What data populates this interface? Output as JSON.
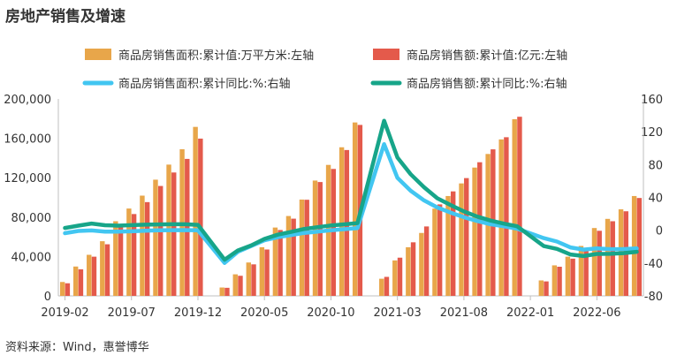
{
  "chart_data": {
    "type": "bar",
    "title": "房地产销售及增速",
    "source": "资料来源：Wind，惠誉博华",
    "legend": [
      {
        "name": "商品房销售面积:累计值:万平方米:左轴",
        "color": "#E8A64A",
        "kind": "bar"
      },
      {
        "name": "商品房销售额:累计值:亿元:左轴",
        "color": "#E45A4B",
        "kind": "bar"
      },
      {
        "name": "商品房销售面积:累计同比:%:右轴",
        "color": "#42C6F1",
        "kind": "line"
      },
      {
        "name": "商品房销售额:累计同比:%:右轴",
        "color": "#17A589",
        "kind": "line"
      }
    ],
    "x_ticks": [
      "2019-02",
      "2019-07",
      "2019-12",
      "2020-05",
      "2020-10",
      "2021-03",
      "2021-08",
      "2022-01",
      "2022-06"
    ],
    "x_tick_months": [
      0,
      5,
      10,
      15,
      20,
      25,
      30,
      35,
      40
    ],
    "y_left": {
      "min": 0,
      "max": 200000,
      "ticks": [
        0,
        40000,
        80000,
        120000,
        160000,
        200000
      ],
      "tick_labels": [
        "0",
        "40,000",
        "80,000",
        "120,000",
        "160,000",
        "200,000"
      ]
    },
    "y_right": {
      "min": -80,
      "max": 160,
      "ticks": [
        -80,
        -40,
        0,
        40,
        80,
        120,
        160
      ],
      "tick_labels": [
        "-80",
        "-40",
        "0",
        "40",
        "80",
        "120",
        "160"
      ]
    },
    "months": [
      "2019-02",
      "2019-03",
      "2019-04",
      "2019-05",
      "2019-06",
      "2019-07",
      "2019-08",
      "2019-09",
      "2019-10",
      "2019-11",
      "2019-12",
      "2020-02",
      "2020-03",
      "2020-04",
      "2020-05",
      "2020-06",
      "2020-07",
      "2020-08",
      "2020-09",
      "2020-10",
      "2020-11",
      "2020-12",
      "2021-02",
      "2021-03",
      "2021-04",
      "2021-05",
      "2021-06",
      "2021-07",
      "2021-08",
      "2021-09",
      "2021-10",
      "2021-11",
      "2021-12",
      "2022-02",
      "2022-03",
      "2022-04",
      "2022-05",
      "2022-06",
      "2022-07",
      "2022-08",
      "2022-09"
    ],
    "month_index": [
      0,
      1,
      2,
      3,
      4,
      5,
      6,
      7,
      8,
      9,
      10,
      12,
      13,
      14,
      15,
      16,
      17,
      18,
      19,
      20,
      21,
      22,
      24,
      25,
      26,
      27,
      28,
      29,
      30,
      31,
      32,
      33,
      34,
      36,
      37,
      38,
      39,
      40,
      41,
      42,
      43
    ],
    "series": [
      {
        "name": "商品房销售面积:累计值:万平方米:左轴",
        "axis": "left",
        "values": [
          14100,
          29800,
          41700,
          55500,
          75800,
          88700,
          101800,
          118000,
          133300,
          148900,
          171600,
          8500,
          21900,
          33900,
          49400,
          69400,
          81100,
          97800,
          117100,
          133000,
          150900,
          176100,
          17400,
          36000,
          49400,
          63900,
          88600,
          101400,
          114200,
          130300,
          144100,
          158900,
          179400,
          15700,
          31000,
          39800,
          50700,
          68900,
          78200,
          87900,
          101400
        ]
      },
      {
        "name": "商品房销售额:累计值:亿元:左轴",
        "axis": "left",
        "values": [
          12800,
          27000,
          39800,
          52400,
          70600,
          83100,
          95200,
          111600,
          125300,
          139100,
          159700,
          8200,
          20400,
          32000,
          47100,
          66900,
          78400,
          97600,
          115600,
          128900,
          148100,
          173600,
          19300,
          38800,
          54400,
          70500,
          92900,
          106100,
          119600,
          135700,
          148800,
          161100,
          181900,
          14700,
          29600,
          37800,
          48500,
          66100,
          75800,
          85900,
          99400
        ]
      },
      {
        "name": "商品房销售面积:累计同比:%:右轴",
        "axis": "right",
        "values": [
          -3.6,
          -0.9,
          -0.3,
          -1.6,
          -1.8,
          -1.3,
          -0.6,
          -0.1,
          0.1,
          0.2,
          -0.1,
          -39.9,
          -26.3,
          -19.3,
          -12.3,
          -8.4,
          -5.8,
          -3.3,
          -1.8,
          0.0,
          1.3,
          2.6,
          104.9,
          63.8,
          48.1,
          36.3,
          27.7,
          21.5,
          15.9,
          11.3,
          7.3,
          4.8,
          1.9,
          -9.6,
          -13.8,
          -20.9,
          -23.6,
          -22.2,
          -23.1,
          -23.0,
          -22.2
        ]
      },
      {
        "name": "商品房销售额:累计同比:%:右轴",
        "axis": "right",
        "values": [
          2.8,
          5.6,
          8.1,
          6.1,
          5.6,
          6.2,
          6.7,
          7.1,
          7.3,
          7.3,
          6.5,
          -35.9,
          -24.7,
          -18.6,
          -10.6,
          -5.4,
          -2.1,
          1.6,
          3.7,
          5.8,
          7.2,
          8.7,
          133.4,
          88.5,
          68.2,
          52.4,
          38.9,
          30.7,
          22.9,
          16.6,
          11.8,
          8.0,
          4.8,
          -19.3,
          -22.7,
          -29.5,
          -31.5,
          -28.9,
          -28.8,
          -27.9,
          -26.3
        ]
      }
    ]
  }
}
